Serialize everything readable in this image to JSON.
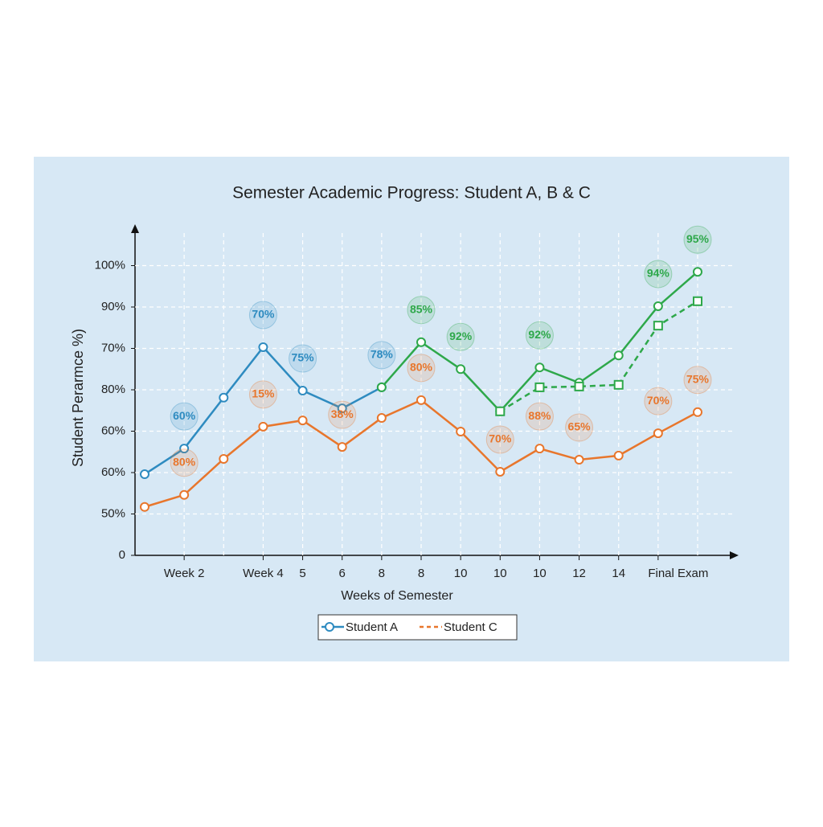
{
  "chart_data": {
    "type": "line",
    "title": "Semester Academic Progress: Student A, B & C",
    "x_label": "Weeks of Semester",
    "y_label": "Student Perarmce %)",
    "categories": [
      null,
      "Week 2",
      null,
      "Week  4",
      "5",
      "6",
      "8",
      "8",
      "10",
      "10",
      "10",
      "12",
      "14",
      "Final Exam",
      null
    ],
    "ylim": [
      0,
      8
    ],
    "yticks": [
      0,
      {
        "value": 1,
        "label": "50%"
      },
      {
        "value": 2,
        "label": "60%"
      },
      {
        "value": 3,
        "label": "60%"
      },
      {
        "value": 4,
        "label": "80%"
      },
      {
        "value": 5,
        "label": "70%"
      },
      {
        "value": 6,
        "label": "90%"
      },
      {
        "value": 7,
        "label": "100%"
      }
    ],
    "grid": true,
    "series": [
      {
        "name": "Student A",
        "color": "#2e8bc0",
        "marker": "circle",
        "values": [
          1.96,
          2.58,
          3.81,
          5.03,
          3.98,
          3.55,
          4.06,
          null,
          null,
          null,
          null,
          null,
          null,
          null,
          null
        ],
        "value_labels": [
          null,
          "60%",
          null,
          "70%",
          "75%",
          null,
          "78%",
          null,
          null,
          null,
          null,
          null,
          null,
          null,
          null
        ]
      },
      {
        "color": "#2ea84a",
        "marker": "circle",
        "values": [
          null,
          null,
          null,
          null,
          null,
          null,
          4.06,
          5.15,
          4.5,
          3.48,
          4.54,
          4.17,
          4.83,
          6.02,
          6.85
        ],
        "value_labels": [
          null,
          null,
          null,
          null,
          null,
          null,
          null,
          "85%",
          "92%",
          null,
          "92%",
          null,
          null,
          "94%",
          "95%"
        ]
      },
      {
        "color": "#2ea84a",
        "marker": "square",
        "dashed": true,
        "values": [
          null,
          null,
          null,
          null,
          null,
          null,
          null,
          null,
          null,
          3.48,
          4.06,
          4.08,
          4.12,
          5.55,
          6.14
        ]
      },
      {
        "name": "Student C",
        "color": "#e8762c",
        "marker": "circle",
        "values": [
          1.17,
          1.46,
          2.33,
          3.11,
          3.26,
          2.62,
          3.32,
          3.75,
          2.99,
          2.02,
          2.58,
          2.31,
          2.41,
          2.95,
          3.46
        ],
        "value_labels": [
          null,
          "80%",
          null,
          "15%",
          null,
          "38%",
          null,
          "80%",
          null,
          "70%",
          "88%",
          "65%",
          null,
          "70%",
          "75%"
        ]
      }
    ]
  }
}
